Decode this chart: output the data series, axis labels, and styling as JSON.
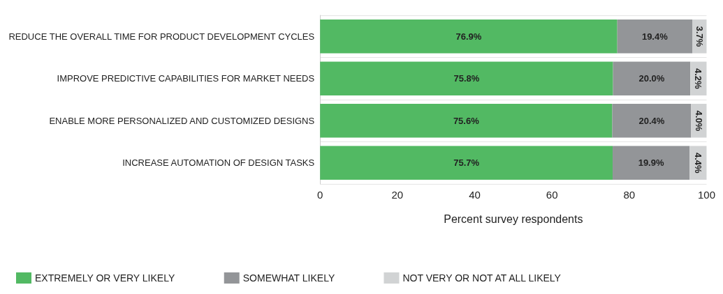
{
  "chart_data": {
    "type": "bar",
    "orientation": "horizontal",
    "stacked": true,
    "categories": [
      "REDUCE THE OVERALL TIME FOR PRODUCT DEVELOPMENT CYCLES",
      "IMPROVE PREDICTIVE CAPABILITIES FOR MARKET NEEDS",
      "ENABLE MORE PERSONALIZED AND CUSTOMIZED DESIGNS",
      "INCREASE AUTOMATION OF DESIGN TASKS"
    ],
    "series": [
      {
        "name": "EXTREMELY OR VERY LIKELY",
        "color": "#52b963",
        "values": [
          76.9,
          75.8,
          75.6,
          75.7
        ],
        "value_labels": [
          "76.9%",
          "75.8%",
          "75.6%",
          "75.7%"
        ]
      },
      {
        "name": "SOMEWHAT LIKELY",
        "color": "#939598",
        "values": [
          19.4,
          20.0,
          20.4,
          19.9
        ],
        "value_labels": [
          "19.4%",
          "20.0%",
          "20.4%",
          "19.9%"
        ]
      },
      {
        "name": "NOT VERY OR NOT AT ALL LIKELY",
        "color": "#d1d3d4",
        "values": [
          3.7,
          4.2,
          4.0,
          4.4
        ],
        "value_labels": [
          "3.7%",
          "4.2%",
          "4.0%",
          "4.4%"
        ]
      }
    ],
    "xlabel": "Percent survey respondents",
    "xlim": [
      0,
      100
    ],
    "xticks": [
      0,
      20,
      40,
      60,
      80,
      100
    ],
    "grid": false,
    "legend": "bottom left"
  }
}
